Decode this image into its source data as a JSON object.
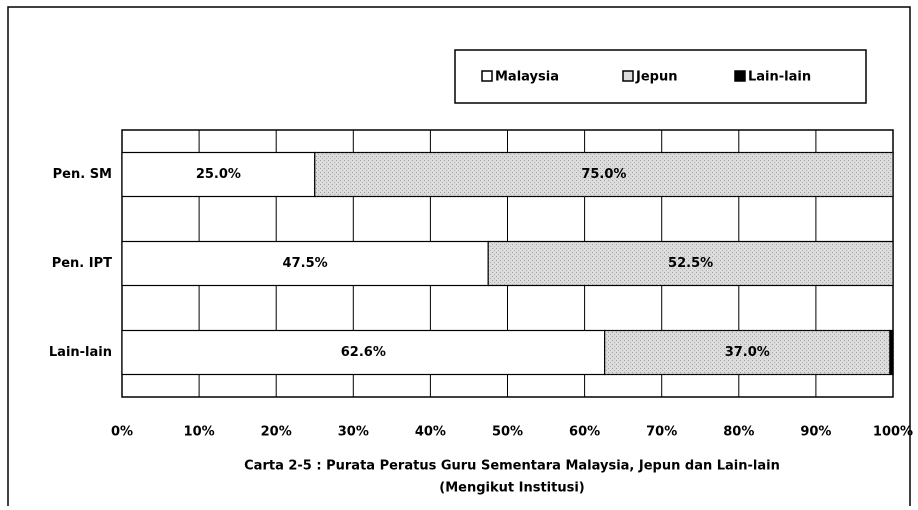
{
  "chart_data": {
    "type": "stacked-horizontal-bar",
    "title": "Carta 2-5 : Purata Peratus Guru Sementara Malaysia, Jepun dan Lain-lain",
    "subtitle": "(Mengikut Institusi)",
    "categories": [
      "Pen. SM",
      "Pen. IPT",
      "Lain-lain"
    ],
    "series": [
      {
        "name": "Malaysia",
        "color": "#ffffff",
        "values": [
          25.0,
          47.5,
          62.6
        ],
        "value_labels": [
          "25.0%",
          "47.5%",
          "62.6%"
        ]
      },
      {
        "name": "Jepun",
        "color": "#dcdcdc",
        "values": [
          75.0,
          52.5,
          37.0
        ],
        "value_labels": [
          "75.0%",
          "52.5%",
          "37.0%"
        ]
      },
      {
        "name": "Lain-lain",
        "color": "#000000",
        "values": [
          0,
          0,
          0.4
        ]
      }
    ],
    "xlim": [
      0,
      100
    ],
    "xticks": [
      {
        "value": 0,
        "label": "0%"
      },
      {
        "value": 10,
        "label": "10%"
      },
      {
        "value": 20,
        "label": "20%"
      },
      {
        "value": 30,
        "label": "30%"
      },
      {
        "value": 40,
        "label": "40%"
      },
      {
        "value": 50,
        "label": "50%"
      },
      {
        "value": 60,
        "label": "60%"
      },
      {
        "value": 70,
        "label": "70%"
      },
      {
        "value": 80,
        "label": "80%"
      },
      {
        "value": 90,
        "label": "90%"
      },
      {
        "value": 100,
        "label": "100%"
      }
    ],
    "grid": true,
    "legend": "top-right"
  }
}
